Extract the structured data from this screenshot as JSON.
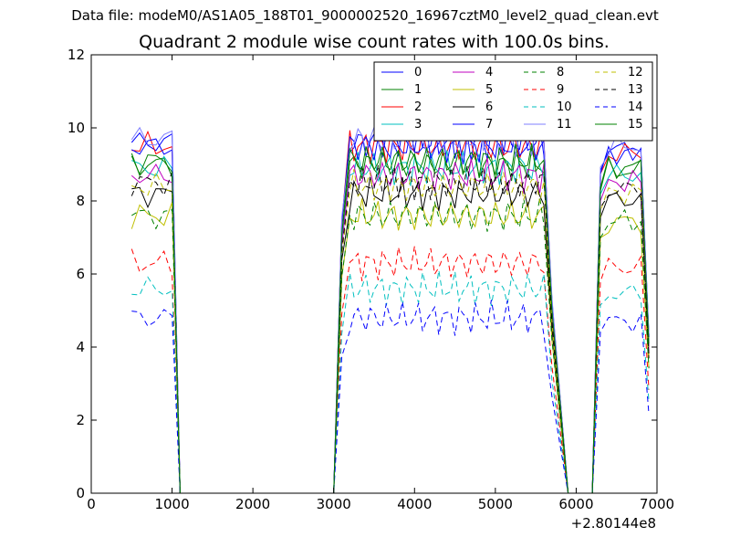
{
  "figure": {
    "suptitle": "Data file: modeM0/AS1A05_188T01_9000002520_16967cztM0_level2_quad_clean.evt",
    "title": "Quadrant 2 module wise count rates with 100.0s bins.",
    "x_offset_label": "+2.80144e8"
  },
  "chart_data": {
    "type": "line",
    "title": "Quadrant 2 module wise count rates with 100.0s bins.",
    "xlabel": "",
    "ylabel": "",
    "x_offset": "+2.80144e8",
    "xlim": [
      0,
      7000
    ],
    "ylim": [
      0,
      12
    ],
    "xticks": [
      0,
      1000,
      2000,
      3000,
      4000,
      5000,
      6000,
      7000
    ],
    "yticks": [
      0,
      2,
      4,
      6,
      8,
      10,
      12
    ],
    "grid": false,
    "legend_position": "top-right",
    "legend_columns": 4,
    "segments": [
      [
        500,
        1100
      ],
      [
        3000,
        5900
      ],
      [
        6200,
        6900
      ]
    ],
    "zero_line": [
      1100,
      3000
    ],
    "series": [
      {
        "name": "0",
        "color": "#0000ff",
        "dash": false,
        "base": 9.6
      },
      {
        "name": "1",
        "color": "#008000",
        "dash": false,
        "base": 9.0
      },
      {
        "name": "2",
        "color": "#ff0000",
        "dash": false,
        "base": 9.5
      },
      {
        "name": "3",
        "color": "#00bfbf",
        "dash": false,
        "base": 8.9
      },
      {
        "name": "4",
        "color": "#bf00bf",
        "dash": false,
        "base": 8.7
      },
      {
        "name": "5",
        "color": "#bfbf00",
        "dash": false,
        "base": 7.6
      },
      {
        "name": "6",
        "color": "#000000",
        "dash": false,
        "base": 8.2
      },
      {
        "name": "7",
        "color": "#0000ff",
        "dash": false,
        "base": 9.5
      },
      {
        "name": "8",
        "color": "#008000",
        "dash": true,
        "base": 7.6
      },
      {
        "name": "9",
        "color": "#ff0000",
        "dash": true,
        "base": 6.3
      },
      {
        "name": "10",
        "color": "#00bfbf",
        "dash": true,
        "base": 5.6
      },
      {
        "name": "11",
        "color": "#7f7fff",
        "dash": false,
        "base": 9.7
      },
      {
        "name": "12",
        "color": "#bfbf00",
        "dash": true,
        "base": 8.4
      },
      {
        "name": "13",
        "color": "#000000",
        "dash": true,
        "base": 8.5
      },
      {
        "name": "14",
        "color": "#0000ff",
        "dash": true,
        "base": 4.8
      },
      {
        "name": "15",
        "color": "#008000",
        "dash": false,
        "base": 9.1
      }
    ]
  }
}
